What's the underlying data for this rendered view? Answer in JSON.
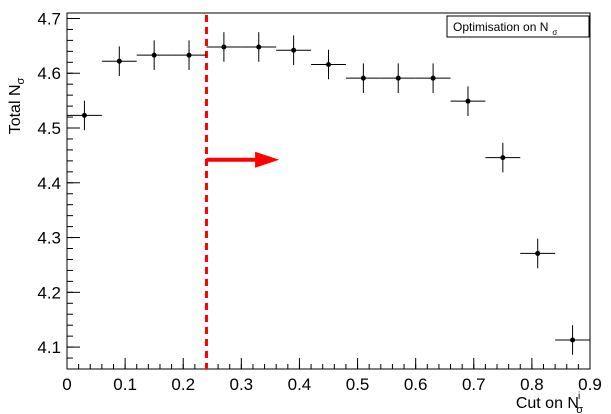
{
  "chart_data": {
    "type": "scatter",
    "title": "",
    "xlabel": "Cut on N",
    "xlabel_sub": "σ",
    "xlabel_sup": "i",
    "ylabel": "Total N",
    "ylabel_sub": "σ",
    "xlim": [
      0,
      0.9
    ],
    "ylim": [
      4.06,
      4.71
    ],
    "x_ticks": [
      {
        "v": 0,
        "label": "0"
      },
      {
        "v": 0.1,
        "label": "0.1"
      },
      {
        "v": 0.2,
        "label": "0.2"
      },
      {
        "v": 0.3,
        "label": "0.3"
      },
      {
        "v": 0.4,
        "label": "0.4"
      },
      {
        "v": 0.5,
        "label": "0.5"
      },
      {
        "v": 0.6,
        "label": "0.6"
      },
      {
        "v": 0.7,
        "label": "0.7"
      },
      {
        "v": 0.8,
        "label": "0.8"
      },
      {
        "v": 0.9,
        "label": "0.9"
      }
    ],
    "y_ticks": [
      {
        "v": 4.1,
        "label": "4.1"
      },
      {
        "v": 4.2,
        "label": "4.2"
      },
      {
        "v": 4.3,
        "label": "4.3"
      },
      {
        "v": 4.4,
        "label": "4.4"
      },
      {
        "v": 4.5,
        "label": "4.5"
      },
      {
        "v": 4.6,
        "label": "4.6"
      },
      {
        "v": 4.7,
        "label": "4.7"
      }
    ],
    "grid": false,
    "legend": {
      "text": "Optimisation on N",
      "sub": "σ",
      "placement": "top-right"
    },
    "series": [
      {
        "marker_color": "#000000",
        "points": [
          {
            "x": 0.03,
            "y": 4.523,
            "xerr": 0.03,
            "yerr": 0.027
          },
          {
            "x": 0.09,
            "y": 4.622,
            "xerr": 0.03,
            "yerr": 0.027
          },
          {
            "x": 0.15,
            "y": 4.633,
            "xerr": 0.03,
            "yerr": 0.027
          },
          {
            "x": 0.21,
            "y": 4.633,
            "xerr": 0.03,
            "yerr": 0.027
          },
          {
            "x": 0.27,
            "y": 4.648,
            "xerr": 0.03,
            "yerr": 0.027
          },
          {
            "x": 0.33,
            "y": 4.648,
            "xerr": 0.03,
            "yerr": 0.027
          },
          {
            "x": 0.39,
            "y": 4.642,
            "xerr": 0.03,
            "yerr": 0.027
          },
          {
            "x": 0.45,
            "y": 4.616,
            "xerr": 0.03,
            "yerr": 0.027
          },
          {
            "x": 0.51,
            "y": 4.591,
            "xerr": 0.03,
            "yerr": 0.027
          },
          {
            "x": 0.57,
            "y": 4.591,
            "xerr": 0.03,
            "yerr": 0.027
          },
          {
            "x": 0.63,
            "y": 4.591,
            "xerr": 0.03,
            "yerr": 0.027
          },
          {
            "x": 0.69,
            "y": 4.549,
            "xerr": 0.03,
            "yerr": 0.027
          },
          {
            "x": 0.75,
            "y": 4.446,
            "xerr": 0.03,
            "yerr": 0.027
          },
          {
            "x": 0.81,
            "y": 4.271,
            "xerr": 0.03,
            "yerr": 0.027
          },
          {
            "x": 0.87,
            "y": 4.113,
            "xerr": 0.03,
            "yerr": 0.027
          }
        ]
      }
    ],
    "annotations": {
      "cut_line": {
        "x": 0.24,
        "color": "#ff0000",
        "style": "dashed"
      },
      "arrow": {
        "x_start": 0.24,
        "x_end": 0.365,
        "y": 4.442,
        "color": "#ff0000"
      }
    }
  }
}
